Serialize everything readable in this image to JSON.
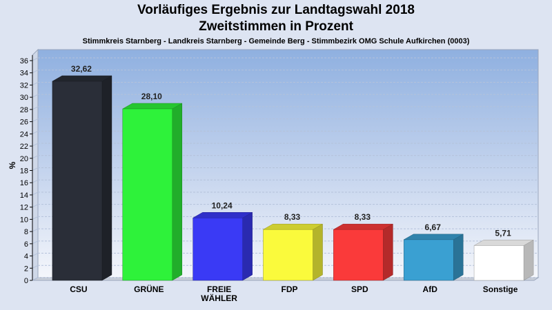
{
  "chart_data": {
    "type": "bar",
    "title": "Vorläufiges Ergebnis zur Landtagswahl 2018",
    "title_line2": "Zweitstimmen in Prozent",
    "subtitle": "Stimmkreis Starnberg - Landkreis Starnberg - Gemeinde Berg - Stimmbezirk OMG Schule Aufkirchen (0003)",
    "ylabel": "%",
    "xlabel": "",
    "ylim": [
      0,
      36
    ],
    "yticks": [
      0,
      2,
      4,
      6,
      8,
      10,
      12,
      14,
      16,
      18,
      20,
      22,
      24,
      26,
      28,
      30,
      32,
      34,
      36
    ],
    "grid": true,
    "categories": [
      "CSU",
      "GRÜNE",
      "FREIE WÄHLER",
      "FDP",
      "SPD",
      "AfD",
      "Sonstige"
    ],
    "category_lines": [
      [
        "CSU"
      ],
      [
        "GRÜNE"
      ],
      [
        "FREIE",
        "WÄHLER"
      ],
      [
        "FDP"
      ],
      [
        "SPD"
      ],
      [
        "AfD"
      ],
      [
        "Sonstige"
      ]
    ],
    "values": [
      32.62,
      28.1,
      10.24,
      8.33,
      8.33,
      6.67,
      5.71
    ],
    "value_labels": [
      "32,62",
      "28,10",
      "10,24",
      "8,33",
      "8,33",
      "6,67",
      "5,71"
    ],
    "colors": [
      "#2a2e38",
      "#2ef23a",
      "#3a3af5",
      "#fafa3c",
      "#fa3a3a",
      "#3aa0d2",
      "#ffffff"
    ]
  }
}
